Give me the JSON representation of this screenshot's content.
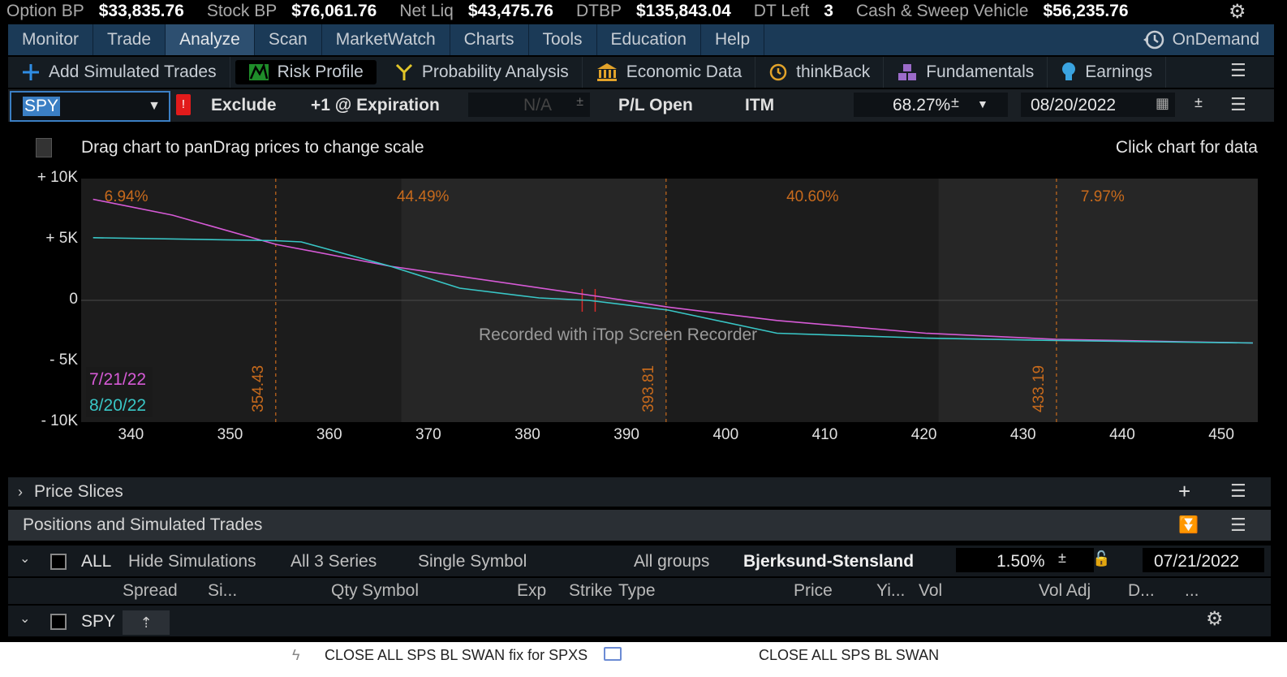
{
  "account": [
    {
      "label": "Option BP",
      "value": "$33,835.76"
    },
    {
      "label": "Stock BP",
      "value": "$76,061.76"
    },
    {
      "label": "Net Liq",
      "value": "$43,475.76"
    },
    {
      "label": "DTBP",
      "value": "$135,843.04"
    },
    {
      "label": "DT Left",
      "value": "3"
    },
    {
      "label": "Cash & Sweep Vehicle",
      "value": "$56,235.76"
    }
  ],
  "nav": {
    "tabs": [
      "Monitor",
      "Trade",
      "Analyze",
      "Scan",
      "MarketWatch",
      "Charts",
      "Tools",
      "Education",
      "Help"
    ],
    "active": "Analyze",
    "ondemand": "OnDemand"
  },
  "tools": {
    "add_simulated": "Add Simulated Trades",
    "risk_profile": "Risk Profile",
    "probability": "Probability Analysis",
    "economic": "Economic Data",
    "thinkback": "thinkBack",
    "fundamentals": "Fundamentals",
    "earnings": "Earnings"
  },
  "controls": {
    "symbol": "SPY",
    "exclude": "Exclude",
    "expiration": "+1 @ Expiration",
    "na": "N/A",
    "pl_open": "P/L Open",
    "itm": "ITM",
    "volatility": "68.27%",
    "date": "08/20/2022"
  },
  "chart_header": {
    "hint_left": "Drag chart to panDrag prices to change scale",
    "hint_right": "Click chart for data"
  },
  "chart_data": {
    "type": "line",
    "xlim": [
      334.8,
      453.5
    ],
    "ylim": [
      -10000,
      10000
    ],
    "x_ticks": [
      "340",
      "350",
      "360",
      "370",
      "380",
      "390",
      "400",
      "410",
      "420",
      "430",
      "440",
      "450"
    ],
    "x_tick_values": [
      340,
      350,
      360,
      370,
      380,
      390,
      400,
      410,
      420,
      430,
      440,
      450
    ],
    "y_ticks": [
      "+ 10K",
      "+ 5K",
      "0",
      "- 5K",
      "- 10K"
    ],
    "y_tick_values": [
      10000,
      5000,
      0,
      -5000,
      -10000
    ],
    "prob_labels": [
      {
        "text": "6.94%",
        "x": 339.6
      },
      {
        "text": "44.49%",
        "x": 369.1
      },
      {
        "text": "40.60%",
        "x": 408.4
      },
      {
        "text": "7.97%",
        "x": 438.1
      }
    ],
    "vlines": [
      {
        "x": 354.43,
        "label": "354.43"
      },
      {
        "x": 393.81,
        "label": "393.81"
      },
      {
        "x": 433.19,
        "label": "433.19"
      }
    ],
    "shaded_bands": [
      [
        367.1,
        393.81
      ],
      [
        421.3,
        453.5
      ]
    ],
    "current_price": 386,
    "series": [
      {
        "name": "7/21/22",
        "color": "#d65ad6",
        "x": [
          336,
          344,
          354.43,
          366,
          380,
          388,
          394,
          405,
          420,
          433.19,
          446,
          453
        ],
        "y": [
          8300,
          7000,
          4600,
          2800,
          1150,
          200,
          -550,
          -1650,
          -2700,
          -3200,
          -3400,
          -3500
        ]
      },
      {
        "name": "8/20/22",
        "color": "#39c6c6",
        "x": [
          336,
          354.43,
          357,
          366,
          373,
          381,
          386,
          394,
          405,
          420,
          433.19,
          453
        ],
        "y": [
          5150,
          4900,
          4800,
          2800,
          1000,
          200,
          0,
          -800,
          -2700,
          -3100,
          -3300,
          -3500
        ]
      }
    ],
    "watermark": "Recorded with iTop Screen Recorder"
  },
  "price_slices": {
    "label": "Price Slices"
  },
  "positions": {
    "title": "Positions and Simulated Trades",
    "filter": {
      "all": "ALL",
      "hide": "Hide Simulations",
      "series": "All 3 Series",
      "single": "Single Symbol",
      "groups": "All groups",
      "model": "Bjerksund-Stensland",
      "rate": "1.50%",
      "date": "07/21/2022"
    },
    "columns": [
      "Spread",
      "Si...",
      "Qty",
      "Symbol",
      "Exp",
      "Strike",
      "Type",
      "Price",
      "Yi...",
      "Vol",
      "Vol Adj",
      "D...",
      "..."
    ],
    "row_symbol": "SPY"
  },
  "bottom": {
    "left": "CLOSE ALL SPS BL SWAN fix for SPXS",
    "right": "CLOSE ALL SPS BL SWAN"
  }
}
